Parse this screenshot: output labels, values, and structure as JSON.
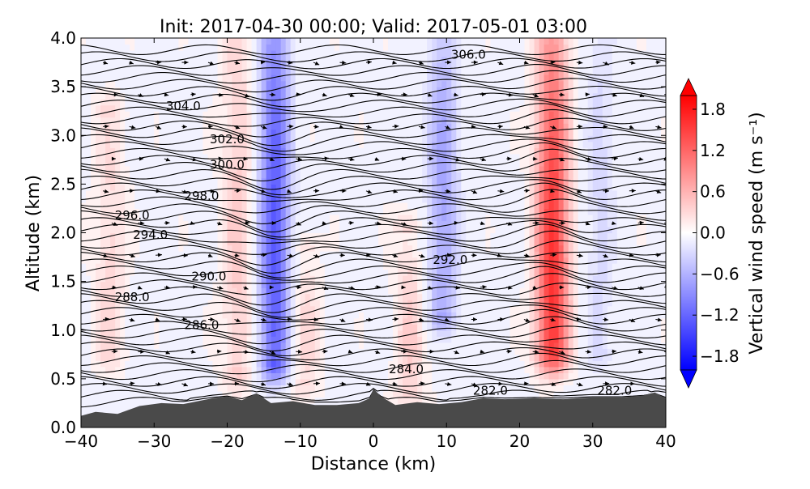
{
  "chart_data": {
    "type": "heatmap",
    "title": "Init: 2017-04-30 00:00; Valid: 2017-05-01 03:00",
    "xlabel": "Distance (km)",
    "ylabel": "Altitude (km)",
    "xlim": [
      -40,
      40
    ],
    "ylim": [
      0.0,
      4.0
    ],
    "x_ticks": [
      -40,
      -30,
      -20,
      -10,
      0,
      10,
      20,
      30,
      40
    ],
    "x_tick_labels": [
      "−40",
      "−30",
      "−20",
      "−10",
      "0",
      "10",
      "20",
      "30",
      "40"
    ],
    "y_ticks": [
      0.0,
      0.5,
      1.0,
      1.5,
      2.0,
      2.5,
      3.0,
      3.5,
      4.0
    ],
    "y_tick_labels": [
      "0.0",
      "0.5",
      "1.0",
      "1.5",
      "2.0",
      "2.5",
      "3.0",
      "3.5",
      "4.0"
    ],
    "colorbar": {
      "label": "Vertical wind speed (m s⁻¹)",
      "range": [
        -2.0,
        2.0
      ],
      "ticks": [
        1.8,
        1.2,
        0.6,
        0.0,
        -0.6,
        -1.2,
        -1.8
      ],
      "tick_labels": [
        "1.8",
        "1.2",
        "0.6",
        "0.0",
        "−0.6",
        "−1.2",
        "−1.8"
      ],
      "colormap": "bwr",
      "extend": "both"
    },
    "colors": {
      "positive": "#ff0000",
      "negative": "#0000ff",
      "neutral": "#ffffff",
      "terrain": "#4a4a4a",
      "contour": "#000000"
    },
    "vertical_wind_features": [
      {
        "x_km": -13.5,
        "z_center_km": 2.0,
        "z_range_km": [
          0.7,
          4.0
        ],
        "w": -1.3
      },
      {
        "x_km": 9.5,
        "z_center_km": 2.3,
        "z_range_km": [
          1.2,
          4.0
        ],
        "w": -0.7
      },
      {
        "x_km": -18.5,
        "z_center_km": 2.1,
        "z_range_km": [
          0.6,
          4.0
        ],
        "w": 0.4
      },
      {
        "x_km": 24.5,
        "z_center_km": 1.6,
        "z_range_km": [
          0.8,
          4.0
        ],
        "w": 1.6
      },
      {
        "x_km": -36.0,
        "z_center_km": 1.7,
        "z_range_km": [
          0.8,
          3.2
        ],
        "w": 0.3
      },
      {
        "x_km": 5.0,
        "z_center_km": 0.9,
        "z_range_km": [
          0.4,
          2.0
        ],
        "w": 0.35
      },
      {
        "x_km": -9.5,
        "z_center_km": 0.9,
        "z_range_km": [
          0.5,
          1.8
        ],
        "w": 0.3
      },
      {
        "x_km": 31.0,
        "z_center_km": 2.3,
        "z_range_km": [
          0.8,
          4.0
        ],
        "w": -0.3
      }
    ],
    "terrain_km": [
      [
        -40,
        0.12
      ],
      [
        -38,
        0.16
      ],
      [
        -35,
        0.14
      ],
      [
        -32,
        0.22
      ],
      [
        -29,
        0.25
      ],
      [
        -26,
        0.24
      ],
      [
        -22,
        0.3
      ],
      [
        -20,
        0.32
      ],
      [
        -18,
        0.28
      ],
      [
        -16,
        0.35
      ],
      [
        -14,
        0.25
      ],
      [
        -11,
        0.27
      ],
      [
        -8,
        0.23
      ],
      [
        -5,
        0.23
      ],
      [
        -2,
        0.25
      ],
      [
        -0.5,
        0.3
      ],
      [
        0,
        0.4
      ],
      [
        1,
        0.32
      ],
      [
        3,
        0.23
      ],
      [
        6,
        0.26
      ],
      [
        9,
        0.24
      ],
      [
        12,
        0.26
      ],
      [
        15,
        0.3
      ],
      [
        18,
        0.29
      ],
      [
        22,
        0.3
      ],
      [
        26,
        0.29
      ],
      [
        30,
        0.31
      ],
      [
        34,
        0.31
      ],
      [
        37,
        0.33
      ],
      [
        38.5,
        0.36
      ],
      [
        40,
        0.3
      ]
    ],
    "theta_contours": {
      "min": 281.0,
      "max": 306.5,
      "step": 0.5,
      "labels": [
        {
          "text": "282.0",
          "x_km": 16.0,
          "z_km": 0.38
        },
        {
          "text": "282.0",
          "x_km": 33.0,
          "z_km": 0.38
        },
        {
          "text": "284.0",
          "x_km": 4.5,
          "z_km": 0.6
        },
        {
          "text": "286.0",
          "x_km": -23.5,
          "z_km": 1.05
        },
        {
          "text": "288.0",
          "x_km": -33.0,
          "z_km": 1.34
        },
        {
          "text": "290.0",
          "x_km": -22.5,
          "z_km": 1.55
        },
        {
          "text": "292.0",
          "x_km": 10.5,
          "z_km": 1.72
        },
        {
          "text": "294.0",
          "x_km": -30.5,
          "z_km": 1.98
        },
        {
          "text": "296.0",
          "x_km": -33.0,
          "z_km": 2.18
        },
        {
          "text": "298.0",
          "x_km": -23.5,
          "z_km": 2.38
        },
        {
          "text": "300.0",
          "x_km": -20.0,
          "z_km": 2.7
        },
        {
          "text": "302.0",
          "x_km": -20.0,
          "z_km": 2.96
        },
        {
          "text": "304.0",
          "x_km": -26.0,
          "z_km": 3.3
        },
        {
          "text": "306.0",
          "x_km": 13.0,
          "z_km": 3.83
        }
      ]
    },
    "wind_vectors": {
      "shown": true,
      "dominant_direction": "easterly"
    }
  }
}
